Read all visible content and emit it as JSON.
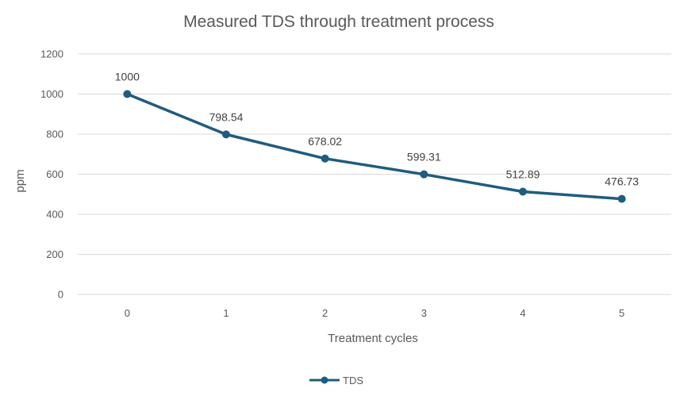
{
  "chart_data": {
    "type": "line",
    "title": "Measured TDS through treatment process",
    "xlabel": "Treatment cycles",
    "ylabel": "ppm",
    "categories": [
      "0",
      "1",
      "2",
      "3",
      "4",
      "5"
    ],
    "series": [
      {
        "name": "TDS",
        "values": [
          1000,
          798.54,
          678.02,
          599.31,
          512.89,
          476.73
        ],
        "labels": [
          "1000",
          "798.54",
          "678.02",
          "599.31",
          "512.89",
          "476.73"
        ],
        "color": "#1f5c7f"
      }
    ],
    "ylim": [
      0,
      1200
    ],
    "yticks": [
      "0",
      "200",
      "400",
      "600",
      "800",
      "1000",
      "1200"
    ],
    "grid": true,
    "legend_position": "bottom"
  }
}
